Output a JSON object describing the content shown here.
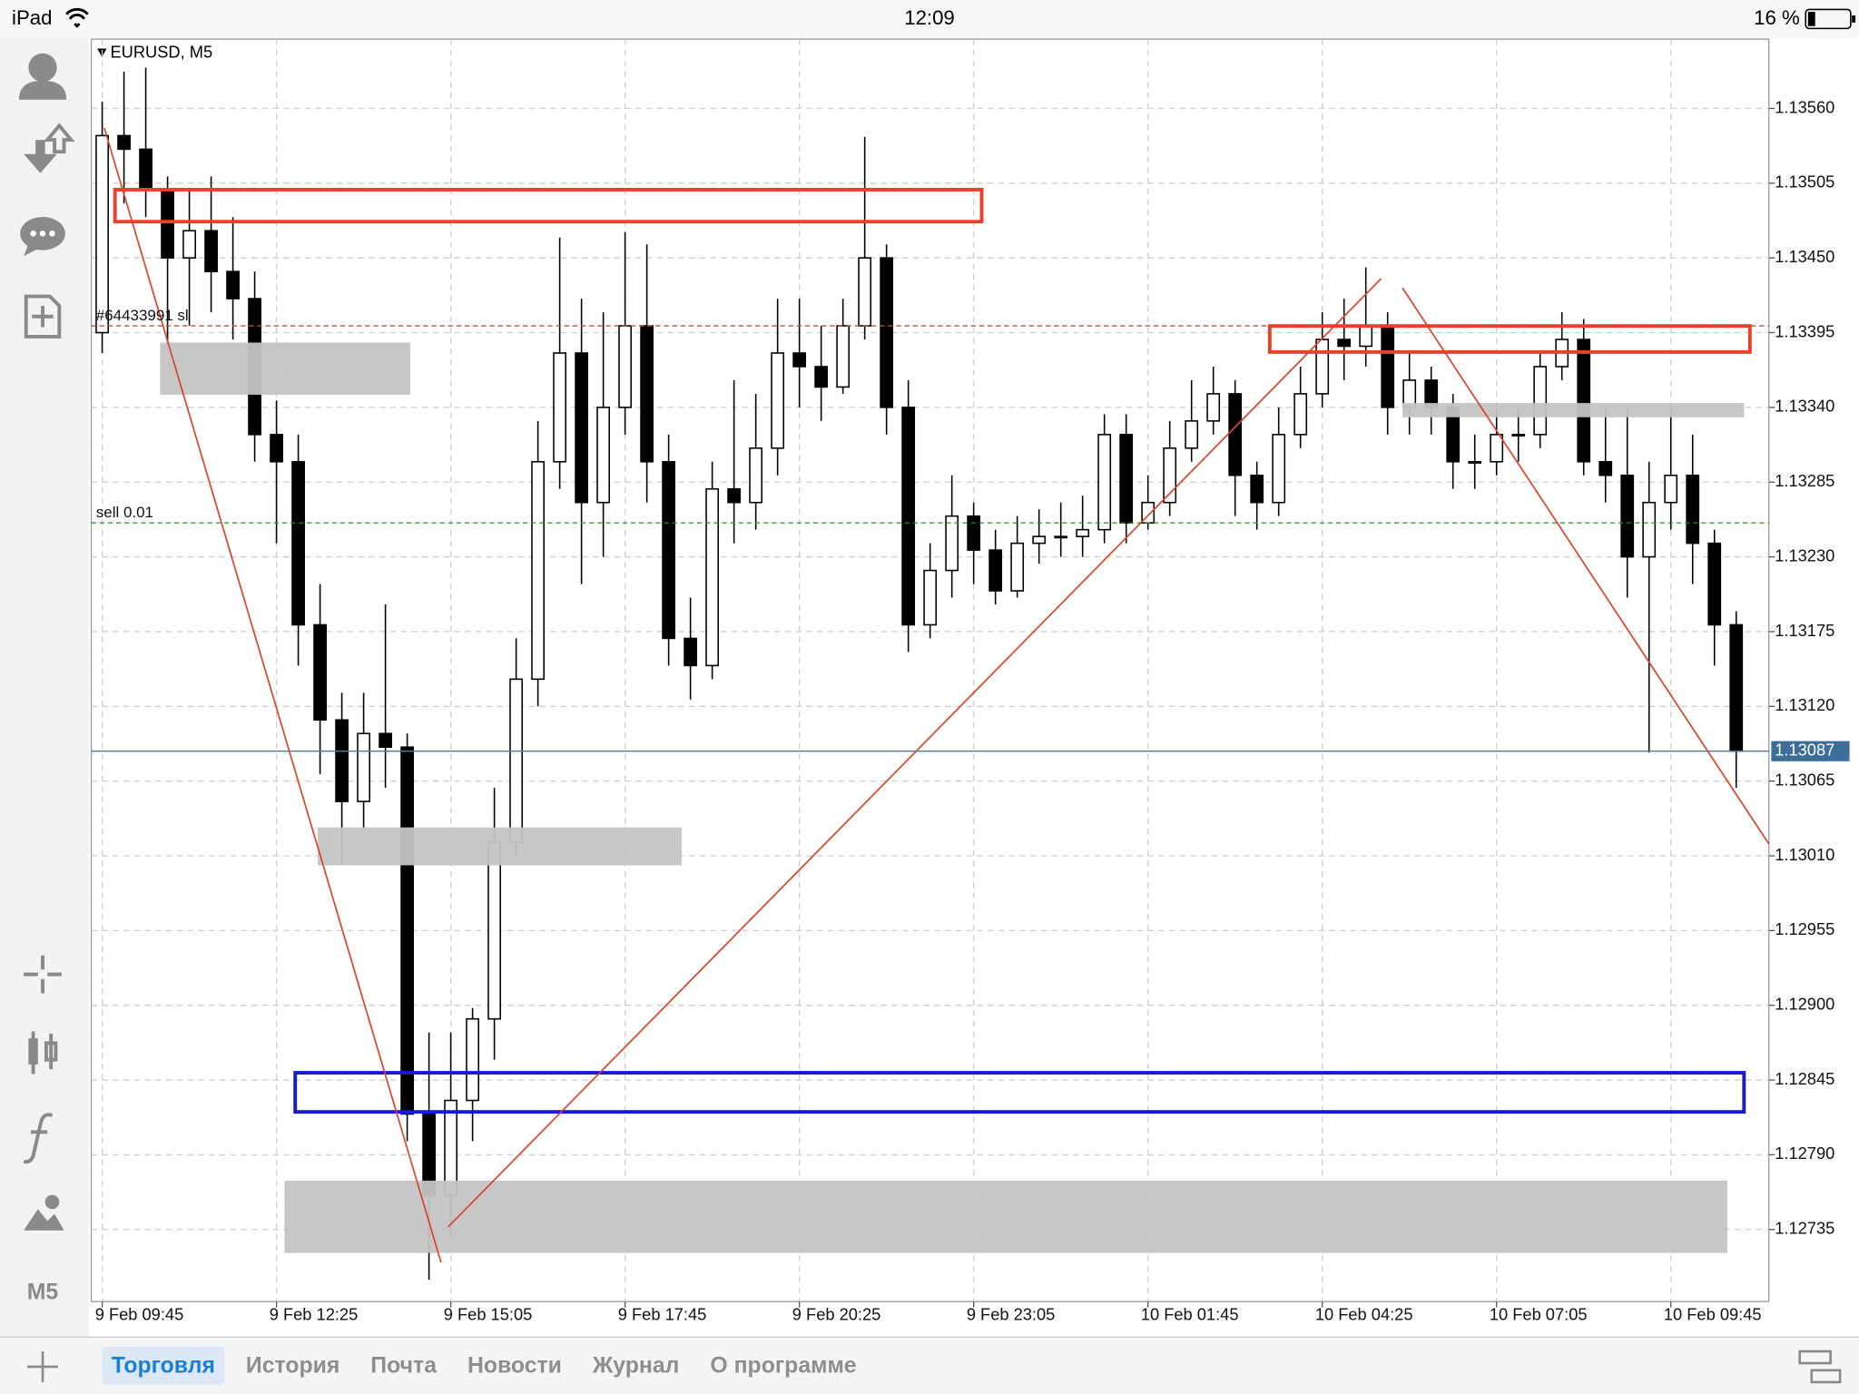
{
  "status_bar": {
    "device": "iPad",
    "time": "12:09",
    "battery": "16 %"
  },
  "chart_header": "EURUSD, M5",
  "sidebar": {
    "timeframe": "M5"
  },
  "chart_data": {
    "type": "candlestick",
    "x": [
      0,
      1,
      2,
      3,
      4,
      5,
      6,
      7,
      8,
      9,
      10,
      11,
      12,
      13,
      14,
      15,
      16,
      17,
      18,
      19,
      20,
      21,
      22,
      23,
      24,
      25,
      26,
      27,
      28,
      29,
      30,
      31,
      32,
      33,
      34,
      35,
      36,
      37,
      38,
      39,
      40,
      41,
      42,
      43,
      44,
      45,
      46,
      47,
      48,
      49,
      50,
      51,
      52,
      53,
      54,
      55,
      56,
      57,
      58,
      59,
      60,
      61,
      62,
      63,
      64,
      65,
      66,
      67,
      68,
      69,
      70,
      71,
      72,
      73,
      74,
      75
    ],
    "open": [
      1.13395,
      1.1354,
      1.1353,
      1.135,
      1.1345,
      1.1347,
      1.1344,
      1.1342,
      1.1332,
      1.133,
      1.1318,
      1.1311,
      1.1305,
      1.131,
      1.1309,
      1.1282,
      1.1276,
      1.1283,
      1.1289,
      1.1302,
      1.1314,
      1.133,
      1.1338,
      1.1327,
      1.1334,
      1.134,
      1.133,
      1.1317,
      1.1315,
      1.1328,
      1.1327,
      1.1331,
      1.1338,
      1.1337,
      1.13355,
      1.134,
      1.1345,
      1.1334,
      1.1318,
      1.1322,
      1.1326,
      1.13235,
      1.13205,
      1.1324,
      1.13245,
      1.13245,
      1.1325,
      1.1332,
      1.13255,
      1.1327,
      1.1331,
      1.1333,
      1.1335,
      1.1329,
      1.1327,
      1.1332,
      1.1335,
      1.1339,
      1.13385,
      1.134,
      1.1334,
      1.1336,
      1.1334,
      1.133,
      1.133,
      1.1332,
      1.1332,
      1.1337,
      1.1339,
      1.133,
      1.1329,
      1.1323,
      1.1327,
      1.1329,
      1.1324,
      1.1318
    ],
    "high": [
      1.13565,
      1.13587,
      1.1359,
      1.1351,
      1.135,
      1.1351,
      1.1348,
      1.1344,
      1.13345,
      1.1332,
      1.1321,
      1.1313,
      1.1313,
      1.13195,
      1.131,
      1.1288,
      1.1288,
      1.12898,
      1.1306,
      1.1317,
      1.1333,
      1.13465,
      1.1342,
      1.1341,
      1.13469,
      1.1346,
      1.1332,
      1.132,
      1.133,
      1.1336,
      1.1335,
      1.1342,
      1.1342,
      1.134,
      1.1342,
      1.13539,
      1.1346,
      1.1336,
      1.1324,
      1.1329,
      1.1327,
      1.1325,
      1.1326,
      1.13265,
      1.1327,
      1.13275,
      1.13335,
      1.13335,
      1.1329,
      1.1333,
      1.1336,
      1.1337,
      1.1336,
      1.133,
      1.1334,
      1.1337,
      1.1341,
      1.1342,
      1.13443,
      1.1341,
      1.1338,
      1.1337,
      1.1335,
      1.1332,
      1.1334,
      1.1334,
      1.1338,
      1.1341,
      1.13405,
      1.1334,
      1.1334,
      1.133,
      1.1334,
      1.1332,
      1.1325,
      1.1319
    ],
    "low": [
      1.1338,
      1.1349,
      1.1348,
      1.13386,
      1.134,
      1.1341,
      1.1339,
      1.133,
      1.1324,
      1.1315,
      1.1307,
      1.13003,
      1.1303,
      1.1306,
      1.128,
      1.12698,
      1.1273,
      1.128,
      1.1286,
      1.1301,
      1.1312,
      1.1328,
      1.1321,
      1.1323,
      1.1332,
      1.1327,
      1.1315,
      1.13125,
      1.1314,
      1.1324,
      1.1325,
      1.1329,
      1.1334,
      1.1333,
      1.1335,
      1.1339,
      1.1332,
      1.1316,
      1.1317,
      1.132,
      1.1321,
      1.13195,
      1.132,
      1.13225,
      1.1323,
      1.1323,
      1.1324,
      1.1324,
      1.1325,
      1.1326,
      1.133,
      1.1332,
      1.1326,
      1.1325,
      1.1326,
      1.1331,
      1.1334,
      1.1336,
      1.1337,
      1.1332,
      1.1332,
      1.1332,
      1.1328,
      1.1328,
      1.1329,
      1.133,
      1.1331,
      1.1336,
      1.1329,
      1.1327,
      1.132,
      1.13086,
      1.1325,
      1.1321,
      1.1315,
      1.1306
    ],
    "close": [
      1.1354,
      1.1353,
      1.135,
      1.1345,
      1.1347,
      1.1344,
      1.1342,
      1.1332,
      1.133,
      1.1318,
      1.1311,
      1.1305,
      1.131,
      1.1309,
      1.1282,
      1.1276,
      1.1283,
      1.1289,
      1.1302,
      1.1314,
      1.133,
      1.1338,
      1.1327,
      1.1334,
      1.134,
      1.133,
      1.1317,
      1.1315,
      1.1328,
      1.1327,
      1.1331,
      1.1338,
      1.1337,
      1.13355,
      1.134,
      1.1345,
      1.1334,
      1.1318,
      1.1322,
      1.1326,
      1.13235,
      1.13205,
      1.1324,
      1.13245,
      1.13245,
      1.1325,
      1.1332,
      1.13255,
      1.1327,
      1.1331,
      1.1333,
      1.1335,
      1.1329,
      1.1327,
      1.1332,
      1.1335,
      1.1339,
      1.13385,
      1.134,
      1.1334,
      1.1336,
      1.1334,
      1.133,
      1.133,
      1.1332,
      1.1332,
      1.1337,
      1.1339,
      1.133,
      1.1329,
      1.1323,
      1.1327,
      1.1329,
      1.1324,
      1.1318,
      1.13087
    ],
    "xlim": [
      -0.5,
      76.5
    ],
    "xticks": [
      {
        "value": 0,
        "label": "9 Feb 09:45"
      },
      {
        "value": 8,
        "label": "9 Feb 12:25"
      },
      {
        "value": 16,
        "label": "9 Feb 15:05"
      },
      {
        "value": 24,
        "label": "9 Feb 17:45"
      },
      {
        "value": 32,
        "label": "9 Feb 20:25"
      },
      {
        "value": 40,
        "label": "9 Feb 23:05"
      },
      {
        "value": 48,
        "label": "10 Feb 01:45"
      },
      {
        "value": 56,
        "label": "10 Feb 04:25"
      },
      {
        "value": 64,
        "label": "10 Feb 07:05"
      },
      {
        "value": 72,
        "label": "10 Feb 09:45"
      }
    ],
    "ylim": [
      1.12682,
      1.13611
    ],
    "yticks": [
      {
        "value": 1.1356,
        "label": "1.13560"
      },
      1.13505,
      {
        "value": 1.1345,
        "label": "1.13450"
      },
      1.13395,
      {
        "value": 1.1334,
        "label": "1.13340"
      },
      1.13285,
      {
        "value": 1.1323,
        "label": "1.13230"
      },
      1.13175,
      {
        "value": 1.1312,
        "label": "1.13120"
      },
      1.13065,
      {
        "value": 1.1301,
        "label": "1.13010"
      },
      1.12955,
      {
        "value": 1.129,
        "label": "1.12900"
      },
      1.12845,
      {
        "value": 1.1279,
        "label": "1.12790"
      },
      1.12735
    ],
    "grid": true,
    "current_price": 1.13087,
    "orders": [
      {
        "label": "#64433991 sl",
        "price": 1.134,
        "color": "#d9442a"
      },
      {
        "label": "sell 0.01",
        "price": 1.13255,
        "color": "#2e8b2e"
      }
    ],
    "up_color": "#ffffff",
    "down_color": "#000000",
    "candle_border": "#000000"
  },
  "tabs": [
    {
      "label": "Торговля",
      "active": true
    },
    {
      "label": "История",
      "active": false
    },
    {
      "label": "Почта",
      "active": false
    },
    {
      "label": "Новости",
      "active": false
    },
    {
      "label": "Журнал",
      "active": false
    },
    {
      "label": "О программе",
      "active": false
    }
  ]
}
